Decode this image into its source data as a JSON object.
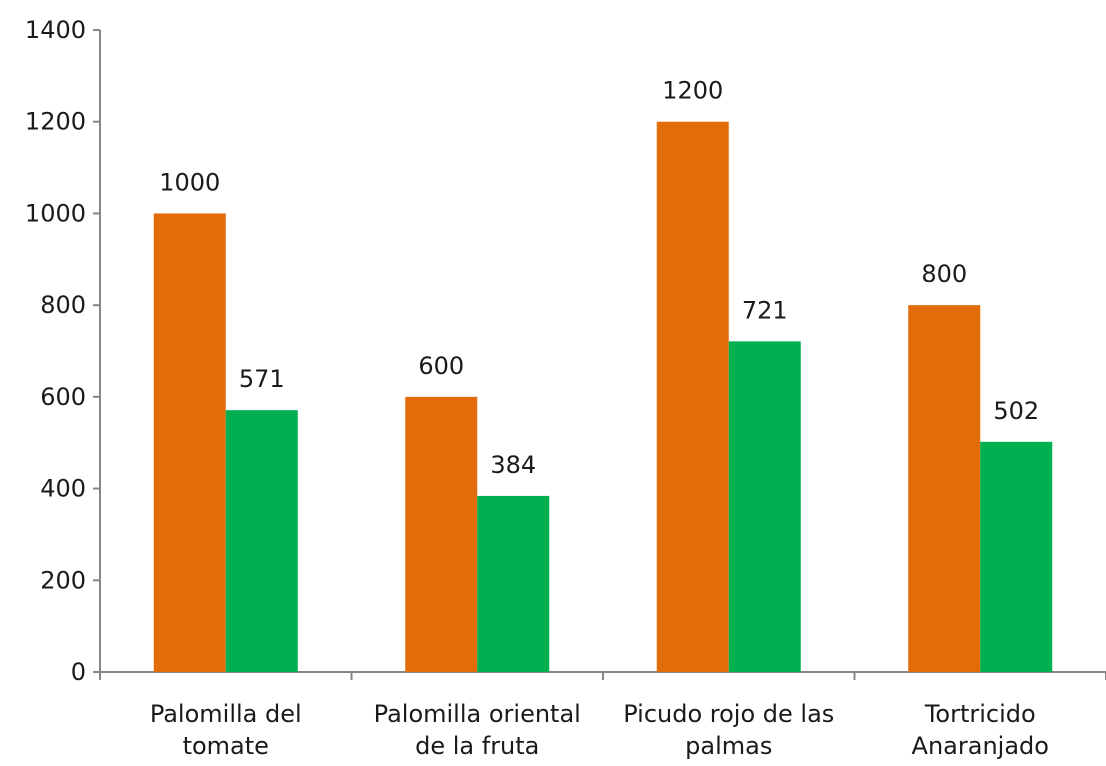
{
  "chart_data": {
    "type": "bar",
    "title": "",
    "xlabel": "",
    "ylabel": "",
    "categories": [
      [
        "Palomilla del",
        "tomate"
      ],
      [
        "Palomilla oriental",
        "de la fruta"
      ],
      [
        "Picudo rojo de las",
        "palmas"
      ],
      [
        "Tortricido",
        "Anaranjado"
      ]
    ],
    "series": [
      {
        "values": [
          1000,
          600,
          1200,
          800
        ],
        "color": "#E36C0A"
      },
      {
        "values": [
          571,
          384,
          721,
          502
        ],
        "color": "#00B050"
      }
    ],
    "ylim": [
      0,
      1400
    ],
    "yticks": [
      0,
      200,
      400,
      600,
      800,
      1000,
      1200,
      1400
    ],
    "grid": false,
    "legend": "none",
    "data_labels": true
  }
}
